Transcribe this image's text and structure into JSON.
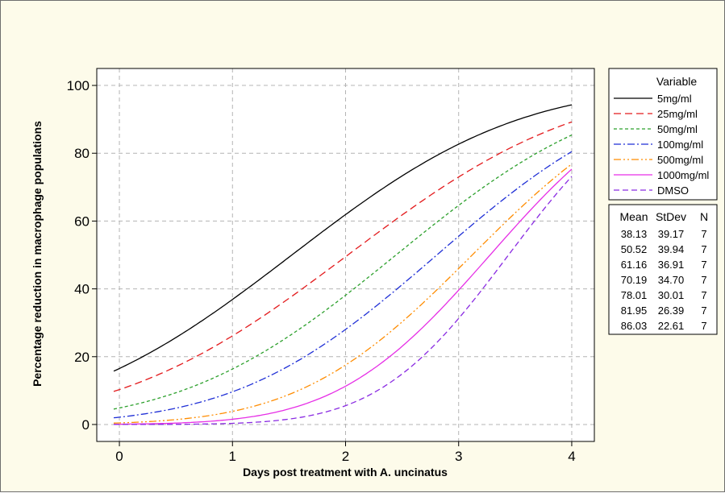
{
  "chart_data": {
    "type": "line",
    "title": "",
    "xlabel": "Days post treatment with A. uncinatus",
    "ylabel": "Percentage reduction in macrophage populations",
    "xlim": [
      -0.2,
      4.2
    ],
    "ylim": [
      -5,
      105
    ],
    "x_ticks": [
      0,
      1,
      2,
      3,
      4
    ],
    "y_ticks": [
      0,
      20,
      40,
      60,
      80,
      100
    ],
    "x_tick_labels": [
      "0",
      "1",
      "2",
      "3",
      "4"
    ],
    "y_tick_labels": [
      "0",
      "20",
      "40",
      "60",
      "80",
      "100"
    ],
    "grid": true,
    "legend_title": "Variable",
    "legend_placement": "right",
    "stats_headers": [
      "Mean",
      "StDev",
      "N"
    ],
    "series": [
      {
        "name": "5mg/ml",
        "color": "#000000",
        "dash": "solid",
        "mean": "38.13",
        "stdev": "39.17",
        "n": "7",
        "mean_value": 38.13,
        "stdev_value": 39.17
      },
      {
        "name": "25mg/ml",
        "color": "#e31a1c",
        "dash": "longdash",
        "mean": "50.52",
        "stdev": "39.94",
        "n": "7",
        "mean_value": 50.52,
        "stdev_value": 39.94
      },
      {
        "name": "50mg/ml",
        "color": "#2ca02c",
        "dash": "shortdash",
        "mean": "61.16",
        "stdev": "36.91",
        "n": "7",
        "mean_value": 61.16,
        "stdev_value": 36.91
      },
      {
        "name": "100mg/ml",
        "color": "#1f2fd6",
        "dash": "dashdot",
        "mean": "70.19",
        "stdev": "34.70",
        "n": "7",
        "mean_value": 70.19,
        "stdev_value": 34.7
      },
      {
        "name": "500mg/ml",
        "color": "#ff8c00",
        "dash": "dashdotdot",
        "mean": "78.01",
        "stdev": "30.01",
        "n": "7",
        "mean_value": 78.01,
        "stdev_value": 30.01
      },
      {
        "name": "1000mg/ml",
        "color": "#e62ee6",
        "dash": "solid",
        "mean": "81.95",
        "stdev": "26.39",
        "n": "7",
        "mean_value": 81.95,
        "stdev_value": 26.39
      },
      {
        "name": "DMSO",
        "color": "#8a2be2",
        "dash": "dash",
        "mean": "86.03",
        "stdev": "22.61",
        "n": "7",
        "mean_value": 86.03,
        "stdev_value": 22.61
      }
    ],
    "x_range": [
      -0.05,
      4.0
    ]
  }
}
